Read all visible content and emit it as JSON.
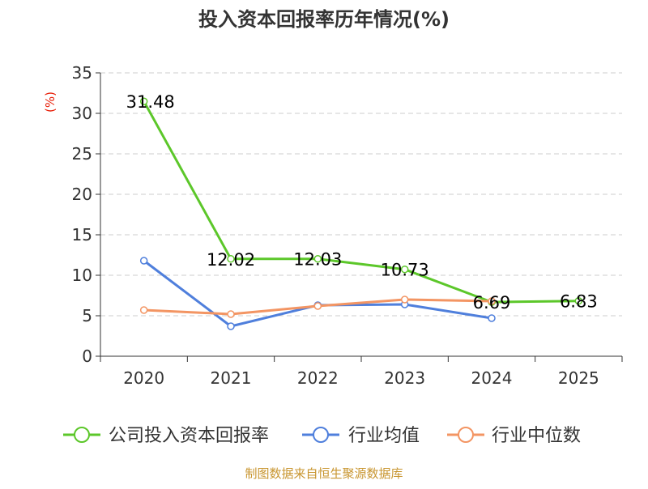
{
  "chart_data": {
    "type": "line",
    "title": "投入资本回报率历年情况(%)",
    "ylabel": "(%)",
    "xlabel": "",
    "categories": [
      "2020",
      "2021",
      "2022",
      "2023",
      "2024",
      "2025"
    ],
    "ylim": [
      0,
      35
    ],
    "yticks": [
      0,
      5,
      10,
      15,
      20,
      25,
      30,
      35
    ],
    "grid": true,
    "legend_position": "bottom",
    "series": [
      {
        "name": "公司投入资本回报率",
        "color": "#5cc72a",
        "values": [
          31.48,
          12.02,
          12.03,
          10.73,
          6.69,
          6.83
        ],
        "labels": [
          "31.48",
          "12.02",
          "12.03",
          "10.73",
          "6.69",
          "6.83"
        ]
      },
      {
        "name": "行业均值",
        "color": "#4f7fdc",
        "values": [
          11.8,
          3.7,
          6.3,
          6.4,
          4.7,
          null
        ]
      },
      {
        "name": "行业中位数",
        "color": "#f39563",
        "values": [
          5.7,
          5.2,
          6.2,
          7.0,
          6.8,
          null
        ]
      }
    ]
  },
  "footer": {
    "source": "制图数据来自恒生聚源数据库"
  },
  "colors": {
    "title": "#333333",
    "axis": "#333333",
    "ylabel": "#e8200a",
    "grid": "#cccccc",
    "source": "#c8952f"
  }
}
